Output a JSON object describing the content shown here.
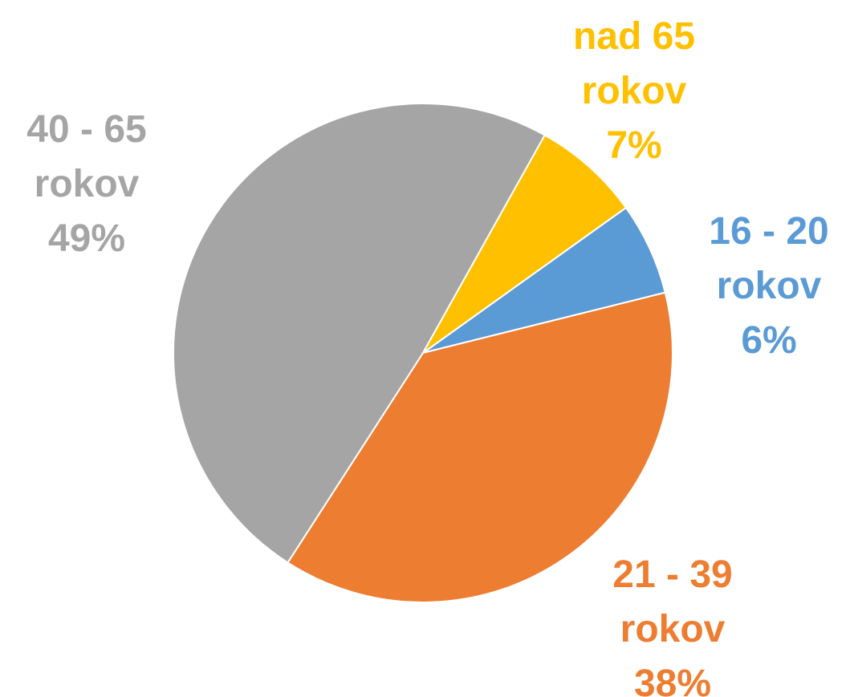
{
  "chart_data": {
    "type": "pie",
    "categories": [
      "16 - 20 rokov",
      "21 - 39 rokov",
      "40 - 65 rokov",
      "nad 65 rokov"
    ],
    "values": [
      6,
      38,
      49,
      7
    ],
    "value_labels": [
      "6%",
      "38%",
      "49%",
      "7%"
    ],
    "colors": [
      "#5b9bd5",
      "#ed7d31",
      "#a5a5a5",
      "#ffc000"
    ]
  }
}
